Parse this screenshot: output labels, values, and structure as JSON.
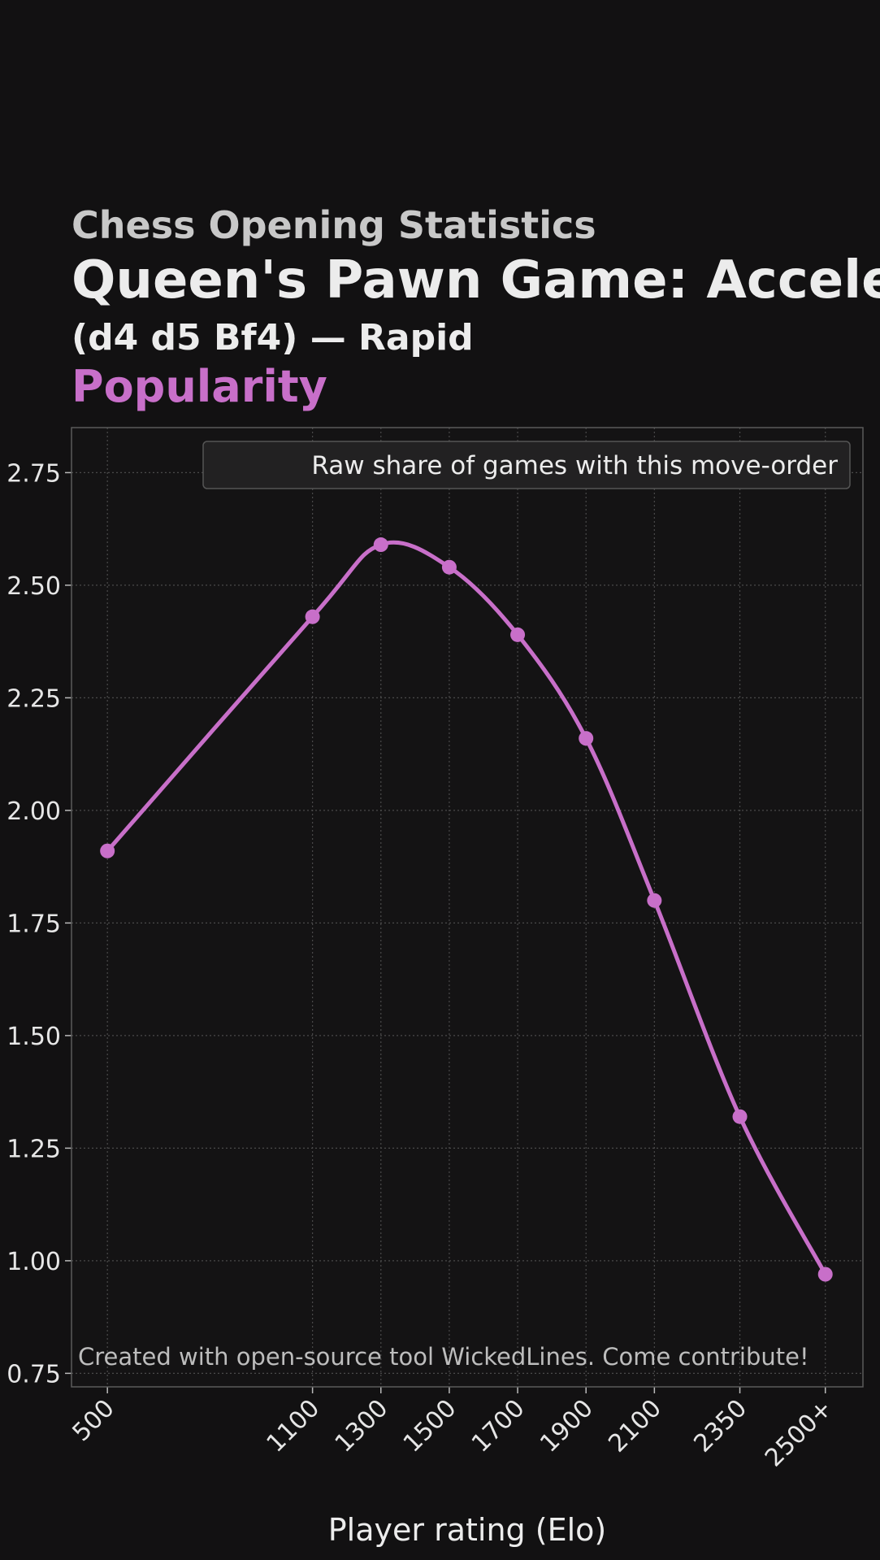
{
  "header": {
    "supertitle": "Chess Opening Statistics",
    "title": "Queen's Pawn Game: Accele",
    "subtitle": "(d4 d5 Bf4) — Rapid",
    "metric": "Popularity"
  },
  "colors": {
    "background": "#121112",
    "plot_background": "#141314",
    "series": "#c86fc9",
    "grid": "#4a4a4a",
    "frame": "#5a5a5a",
    "text": "#e6e6e6"
  },
  "chart_data": {
    "type": "line",
    "title": "Popularity",
    "xlabel": "Player rating (Elo)",
    "ylabel": "",
    "categories": [
      "500",
      "1100",
      "1300",
      "1500",
      "1700",
      "1900",
      "2100",
      "2350",
      "2500+"
    ],
    "x": [
      500,
      1100,
      1300,
      1500,
      1700,
      1900,
      2100,
      2350,
      2600
    ],
    "series": [
      {
        "name": "Raw share of games with this move-order",
        "values": [
          1.91,
          2.43,
          2.59,
          2.54,
          2.39,
          2.16,
          1.8,
          1.32,
          0.97
        ]
      }
    ],
    "yticks": [
      "0.75",
      "1.00",
      "1.25",
      "1.50",
      "1.75",
      "2.00",
      "2.25",
      "2.50",
      "2.75"
    ],
    "ylim": [
      0.72,
      2.85
    ],
    "xlim": [
      395,
      2710
    ],
    "grid": true,
    "legend_position": "top-right",
    "annotation": "Created with open-source tool WickedLines. Come contribute!"
  }
}
